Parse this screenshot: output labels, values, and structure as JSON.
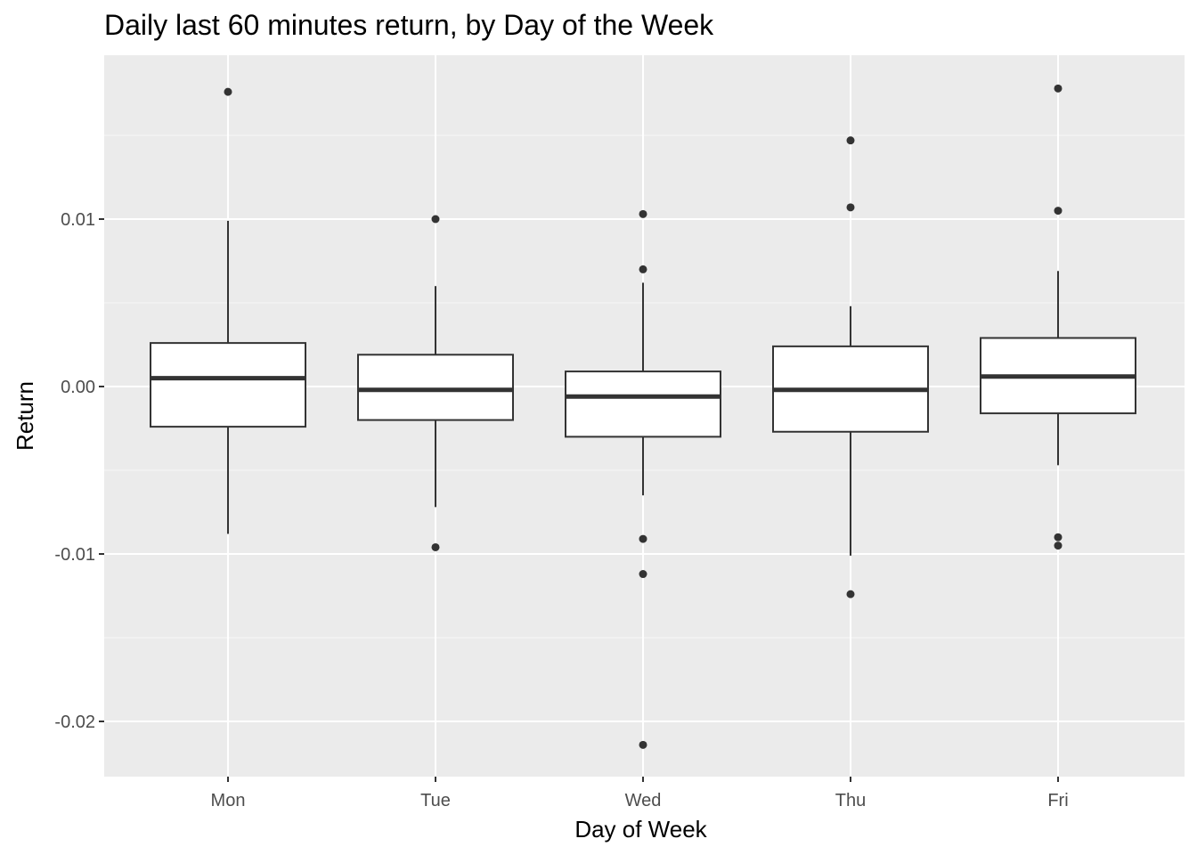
{
  "chart_data": {
    "type": "boxplot",
    "title": "Daily last 60 minutes return, by Day of the Week",
    "xlabel": "Day of Week",
    "ylabel": "Return",
    "categories": [
      "Mon",
      "Tue",
      "Wed",
      "Thu",
      "Fri"
    ],
    "y_ticks": [
      -0.02,
      -0.01,
      0.0,
      0.01
    ],
    "y_tick_labels": [
      "-0.02",
      "-0.01",
      "0.00",
      "0.01"
    ],
    "ylim": [
      -0.0233,
      0.0198
    ],
    "grid": true,
    "legend": "none",
    "boxes": [
      {
        "category": "Mon",
        "whisker_low": -0.0088,
        "q1": -0.0024,
        "median": 0.0005,
        "q3": 0.0026,
        "whisker_high": 0.0099,
        "outliers": [
          0.0176
        ]
      },
      {
        "category": "Tue",
        "whisker_low": -0.0072,
        "q1": -0.002,
        "median": -0.0002,
        "q3": 0.0019,
        "whisker_high": 0.006,
        "outliers": [
          0.01,
          -0.0096
        ]
      },
      {
        "category": "Wed",
        "whisker_low": -0.0065,
        "q1": -0.003,
        "median": -0.0006,
        "q3": 0.0009,
        "whisker_high": 0.0062,
        "outliers": [
          0.0103,
          0.007,
          -0.0091,
          -0.0112,
          -0.0214
        ]
      },
      {
        "category": "Thu",
        "whisker_low": -0.0101,
        "q1": -0.0027,
        "median": -0.0002,
        "q3": 0.0024,
        "whisker_high": 0.0048,
        "outliers": [
          0.0147,
          0.0107,
          -0.0124
        ]
      },
      {
        "category": "Fri",
        "whisker_low": -0.0047,
        "q1": -0.0016,
        "median": 0.0006,
        "q3": 0.0029,
        "whisker_high": 0.0069,
        "outliers": [
          0.0178,
          0.0105,
          -0.009,
          -0.0095
        ]
      }
    ],
    "colors": {
      "panel": "#EBEBEB",
      "grid_major": "#FFFFFF",
      "box_fill": "#FFFFFF",
      "box_line": "#333333",
      "outlier": "#333333",
      "tick_label": "#4D4D4D",
      "axis_title": "#000000"
    }
  }
}
